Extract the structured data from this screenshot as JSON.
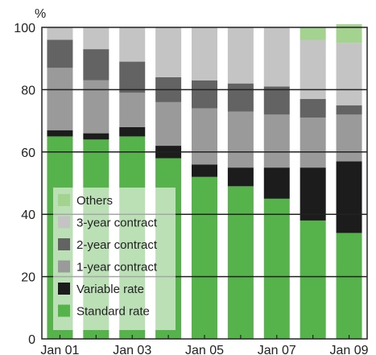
{
  "chart_data": {
    "type": "bar",
    "stacked": true,
    "y_unit_label": "%",
    "ylim": [
      0,
      100
    ],
    "y_ticks": [
      0,
      20,
      40,
      60,
      80,
      100
    ],
    "grid": true,
    "legend_position": "lower-left",
    "categories": [
      "Jan 01",
      "Jan 02",
      "Jan 03",
      "Jan 04",
      "Jan 05",
      "Jan 06",
      "Jan 07",
      "Jan 08",
      "Jan 09"
    ],
    "x_tick_labels": [
      "Jan 01",
      "Jan 03",
      "Jan 05",
      "Jan 07",
      "Jan 09"
    ],
    "series": [
      {
        "name": "Standard rate",
        "color": "#56b24a",
        "values": [
          65,
          64,
          65,
          58,
          52,
          49,
          45,
          38,
          34
        ]
      },
      {
        "name": "Variable rate",
        "color": "#1c1c1c",
        "values": [
          2,
          2,
          3,
          4,
          4,
          6,
          10,
          17,
          23
        ]
      },
      {
        "name": "1-year contract",
        "color": "#9a9a9a",
        "values": [
          20,
          17,
          11,
          14,
          18,
          18,
          17,
          16,
          15
        ]
      },
      {
        "name": "2-year contract",
        "color": "#636363",
        "values": [
          9,
          10,
          10,
          8,
          9,
          9,
          9,
          6,
          3
        ]
      },
      {
        "name": "3-year contract",
        "color": "#c4c4c4",
        "values": [
          4,
          7,
          11,
          16,
          17,
          18,
          19,
          19,
          20
        ]
      },
      {
        "name": "Others",
        "color": "#a3d38f",
        "values": [
          0,
          0,
          0,
          0,
          0,
          0,
          0,
          4,
          6
        ]
      }
    ]
  }
}
